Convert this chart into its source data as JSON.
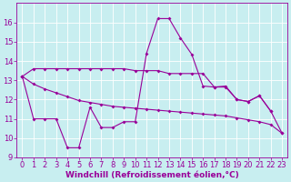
{
  "x": [
    0,
    1,
    2,
    3,
    4,
    5,
    6,
    7,
    8,
    9,
    10,
    11,
    12,
    13,
    14,
    15,
    16,
    17,
    18,
    19,
    20,
    21,
    22,
    23
  ],
  "line1_y": [
    13.2,
    13.6,
    13.6,
    13.6,
    13.6,
    13.6,
    13.6,
    13.6,
    13.6,
    13.6,
    13.5,
    13.5,
    13.5,
    13.35,
    13.35,
    13.35,
    13.35,
    12.65,
    12.65,
    12.0,
    11.9,
    12.2,
    11.4,
    null
  ],
  "line2_y": [
    13.2,
    12.8,
    12.55,
    12.35,
    12.15,
    11.95,
    11.85,
    11.75,
    11.65,
    11.6,
    11.55,
    11.5,
    11.45,
    11.4,
    11.35,
    11.3,
    11.25,
    11.2,
    11.15,
    11.05,
    10.95,
    10.85,
    10.7,
    10.25
  ],
  "line3_y": [
    13.2,
    11.0,
    11.0,
    11.0,
    9.5,
    9.5,
    11.6,
    10.55,
    10.55,
    10.85,
    10.85,
    14.4,
    16.2,
    16.2,
    15.2,
    14.35,
    12.7,
    12.65,
    12.7,
    12.0,
    11.9,
    12.2,
    11.4,
    10.25
  ],
  "color": "#990099",
  "bg_color": "#c8eef0",
  "grid_color": "#ffffff",
  "xlabel": "Windchill (Refroidissement éolien,°C)",
  "ylim": [
    9,
    17
  ],
  "xlim": [
    -0.5,
    23.5
  ],
  "yticks": [
    9,
    10,
    11,
    12,
    13,
    14,
    15,
    16
  ],
  "xticks": [
    0,
    1,
    2,
    3,
    4,
    5,
    6,
    7,
    8,
    9,
    10,
    11,
    12,
    13,
    14,
    15,
    16,
    17,
    18,
    19,
    20,
    21,
    22,
    23
  ],
  "tick_fontsize": 6,
  "xlabel_fontsize": 6.5,
  "linewidth": 0.8,
  "markersize": 2
}
